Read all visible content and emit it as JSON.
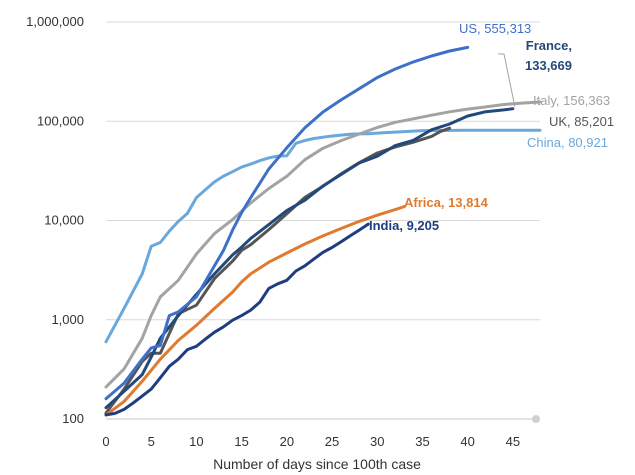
{
  "chart_data": {
    "type": "line",
    "title": "",
    "xlabel": "Number of days since 100th case",
    "ylabel": "",
    "xlim": [
      0,
      48
    ],
    "ylim": [
      100,
      1000000
    ],
    "y_scale": "log",
    "grid": "horizontal",
    "legend": "none",
    "x_ticks": [
      0,
      5,
      10,
      15,
      20,
      25,
      30,
      35,
      40,
      45
    ],
    "y_ticks": [
      100,
      1000,
      10000,
      100000,
      1000000
    ],
    "y_tick_labels": [
      "100",
      "1,000",
      "10,000",
      "100,000",
      "1,000,000"
    ],
    "series": [
      {
        "name": "China",
        "label_text": "China,",
        "value_text": "80,921",
        "color": "#6aa8dc",
        "points": [
          [
            0,
            600
          ],
          [
            2,
            1300
          ],
          [
            4,
            2900
          ],
          [
            5,
            5500
          ],
          [
            6,
            6000
          ],
          [
            7,
            7800
          ],
          [
            8,
            9800
          ],
          [
            9,
            11800
          ],
          [
            10,
            17000
          ],
          [
            11,
            20500
          ],
          [
            12,
            24500
          ],
          [
            13,
            28000
          ],
          [
            14,
            31000
          ],
          [
            15,
            34500
          ],
          [
            16,
            37000
          ],
          [
            17,
            40000
          ],
          [
            18,
            42700
          ],
          [
            19,
            44600
          ],
          [
            20,
            45000
          ],
          [
            21,
            60000
          ],
          [
            22,
            64000
          ],
          [
            23,
            67000
          ],
          [
            24,
            69000
          ],
          [
            25,
            71000
          ],
          [
            26,
            72500
          ],
          [
            27,
            74000
          ],
          [
            28,
            74500
          ],
          [
            29,
            75000
          ],
          [
            30,
            76000
          ],
          [
            35,
            80500
          ],
          [
            40,
            81000
          ],
          [
            44,
            81200
          ],
          [
            48,
            81100
          ]
        ]
      },
      {
        "name": "Italy",
        "label_text": "Italy,",
        "value_text": "156,363",
        "color": "#a3a3a3",
        "points": [
          [
            0,
            210
          ],
          [
            2,
            320
          ],
          [
            4,
            650
          ],
          [
            5,
            1100
          ],
          [
            6,
            1700
          ],
          [
            8,
            2500
          ],
          [
            10,
            4600
          ],
          [
            12,
            7400
          ],
          [
            14,
            10200
          ],
          [
            15,
            12400
          ],
          [
            16,
            15000
          ],
          [
            18,
            21000
          ],
          [
            20,
            27900
          ],
          [
            22,
            41000
          ],
          [
            24,
            53500
          ],
          [
            26,
            63900
          ],
          [
            28,
            74400
          ],
          [
            30,
            86500
          ],
          [
            32,
            97700
          ],
          [
            34,
            105800
          ],
          [
            36,
            115200
          ],
          [
            38,
            124600
          ],
          [
            40,
            132500
          ],
          [
            42,
            139400
          ],
          [
            44,
            147600
          ],
          [
            46,
            152300
          ],
          [
            48,
            156400
          ]
        ]
      },
      {
        "name": "UK",
        "label_text": "UK,",
        "value_text": "85,201",
        "color": "#555555",
        "points": [
          [
            0,
            115
          ],
          [
            2,
            200
          ],
          [
            4,
            380
          ],
          [
            5,
            460
          ],
          [
            6,
            460
          ],
          [
            8,
            1150
          ],
          [
            10,
            1400
          ],
          [
            12,
            2600
          ],
          [
            14,
            3900
          ],
          [
            15,
            5000
          ],
          [
            16,
            5700
          ],
          [
            18,
            8100
          ],
          [
            20,
            11700
          ],
          [
            22,
            17100
          ],
          [
            24,
            22100
          ],
          [
            26,
            29500
          ],
          [
            28,
            38200
          ],
          [
            30,
            47900
          ],
          [
            32,
            55200
          ],
          [
            34,
            61500
          ],
          [
            36,
            70300
          ],
          [
            37,
            79000
          ],
          [
            38,
            85200
          ]
        ]
      },
      {
        "name": "France",
        "label_text": "France,",
        "value_text": "133,669",
        "color": "#23497a",
        "points": [
          [
            0,
            130
          ],
          [
            2,
            190
          ],
          [
            4,
            280
          ],
          [
            5,
            420
          ],
          [
            6,
            650
          ],
          [
            8,
            1100
          ],
          [
            10,
            1800
          ],
          [
            12,
            2900
          ],
          [
            14,
            4500
          ],
          [
            15,
            5400
          ],
          [
            16,
            6600
          ],
          [
            18,
            9100
          ],
          [
            20,
            12600
          ],
          [
            22,
            16000
          ],
          [
            24,
            22300
          ],
          [
            26,
            29100
          ],
          [
            28,
            38000
          ],
          [
            30,
            44500
          ],
          [
            32,
            56900
          ],
          [
            34,
            64300
          ],
          [
            36,
            82000
          ],
          [
            38,
            93800
          ],
          [
            40,
            112900
          ],
          [
            42,
            124800
          ],
          [
            44,
            130000
          ],
          [
            45,
            133700
          ]
        ]
      },
      {
        "name": "US",
        "label_text": "US,",
        "value_text": "555,313",
        "color": "#3e70c9",
        "points": [
          [
            0,
            160
          ],
          [
            2,
            230
          ],
          [
            4,
            400
          ],
          [
            5,
            520
          ],
          [
            6,
            550
          ],
          [
            7,
            1100
          ],
          [
            8,
            1200
          ],
          [
            10,
            1700
          ],
          [
            12,
            3500
          ],
          [
            13,
            5000
          ],
          [
            14,
            8000
          ],
          [
            15,
            12000
          ],
          [
            16,
            17000
          ],
          [
            18,
            33000
          ],
          [
            20,
            54000
          ],
          [
            22,
            86000
          ],
          [
            24,
            124000
          ],
          [
            26,
            164000
          ],
          [
            28,
            213000
          ],
          [
            30,
            276000
          ],
          [
            32,
            336000
          ],
          [
            34,
            396000
          ],
          [
            36,
            454000
          ],
          [
            38,
            510000
          ],
          [
            40,
            555300
          ]
        ]
      },
      {
        "name": "Africa",
        "label_text": "Africa,",
        "value_text": "13,814",
        "color": "#e07a30",
        "points": [
          [
            0,
            110
          ],
          [
            2,
            150
          ],
          [
            4,
            240
          ],
          [
            6,
            400
          ],
          [
            8,
            620
          ],
          [
            10,
            880
          ],
          [
            12,
            1300
          ],
          [
            14,
            1900
          ],
          [
            15,
            2400
          ],
          [
            16,
            2900
          ],
          [
            18,
            3800
          ],
          [
            20,
            4700
          ],
          [
            22,
            5800
          ],
          [
            24,
            7000
          ],
          [
            26,
            8300
          ],
          [
            28,
            9800
          ],
          [
            30,
            11300
          ],
          [
            32,
            12900
          ],
          [
            33,
            13800
          ]
        ]
      },
      {
        "name": "India",
        "label_text": "India,",
        "value_text": "9,205",
        "color": "#1f3d80",
        "points": [
          [
            0,
            110
          ],
          [
            1,
            114
          ],
          [
            2,
            125
          ],
          [
            3,
            145
          ],
          [
            4,
            170
          ],
          [
            5,
            200
          ],
          [
            6,
            260
          ],
          [
            7,
            340
          ],
          [
            8,
            400
          ],
          [
            9,
            500
          ],
          [
            10,
            540
          ],
          [
            11,
            640
          ],
          [
            12,
            750
          ],
          [
            13,
            850
          ],
          [
            14,
            990
          ],
          [
            15,
            1100
          ],
          [
            16,
            1250
          ],
          [
            17,
            1500
          ],
          [
            18,
            2070
          ],
          [
            19,
            2300
          ],
          [
            20,
            2500
          ],
          [
            21,
            3100
          ],
          [
            22,
            3500
          ],
          [
            23,
            4100
          ],
          [
            24,
            4780
          ],
          [
            25,
            5350
          ],
          [
            26,
            6100
          ],
          [
            27,
            7000
          ],
          [
            28,
            8000
          ],
          [
            29,
            9200
          ]
        ]
      }
    ]
  }
}
